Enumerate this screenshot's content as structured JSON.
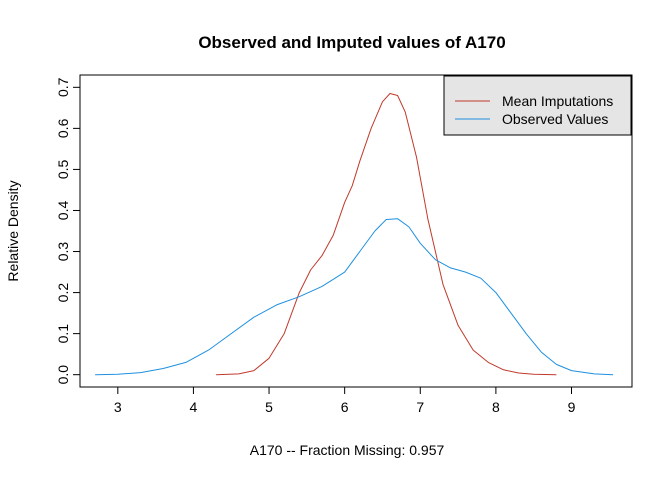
{
  "chart_data": {
    "type": "line",
    "title": "Observed and Imputed values of A170",
    "xlabel": "A170   --  Fraction Missing: 0.957",
    "ylabel": "Relative Density",
    "xlim": [
      2.5,
      9.8
    ],
    "ylim": [
      -0.03,
      0.73
    ],
    "xticks": [
      3,
      4,
      5,
      6,
      7,
      8,
      9
    ],
    "yticks": [
      0.0,
      0.1,
      0.2,
      0.3,
      0.4,
      0.5,
      0.6,
      0.7
    ],
    "legend_position": "top-right",
    "grid": false,
    "series": [
      {
        "name": "Mean Imputations",
        "color": "#C0392B",
        "x": [
          4.3,
          4.6,
          4.8,
          5.0,
          5.2,
          5.4,
          5.55,
          5.7,
          5.85,
          6.0,
          6.1,
          6.2,
          6.35,
          6.5,
          6.6,
          6.7,
          6.8,
          6.95,
          7.1,
          7.3,
          7.5,
          7.7,
          7.9,
          8.1,
          8.3,
          8.5,
          8.8
        ],
        "y": [
          0.0,
          0.002,
          0.01,
          0.04,
          0.1,
          0.2,
          0.255,
          0.29,
          0.34,
          0.42,
          0.46,
          0.52,
          0.6,
          0.665,
          0.685,
          0.68,
          0.64,
          0.53,
          0.38,
          0.22,
          0.12,
          0.06,
          0.03,
          0.012,
          0.004,
          0.001,
          0.0
        ]
      },
      {
        "name": "Observed Values",
        "color": "#1E90E0",
        "x": [
          2.7,
          3.0,
          3.3,
          3.6,
          3.9,
          4.2,
          4.5,
          4.8,
          5.1,
          5.4,
          5.7,
          6.0,
          6.2,
          6.4,
          6.55,
          6.7,
          6.85,
          7.0,
          7.2,
          7.4,
          7.6,
          7.8,
          8.0,
          8.2,
          8.4,
          8.6,
          8.8,
          9.0,
          9.3,
          9.55
        ],
        "y": [
          0.0,
          0.001,
          0.005,
          0.015,
          0.03,
          0.06,
          0.1,
          0.14,
          0.17,
          0.19,
          0.215,
          0.25,
          0.3,
          0.35,
          0.378,
          0.38,
          0.36,
          0.32,
          0.28,
          0.26,
          0.25,
          0.235,
          0.2,
          0.15,
          0.1,
          0.055,
          0.025,
          0.01,
          0.002,
          0.0
        ]
      }
    ]
  }
}
